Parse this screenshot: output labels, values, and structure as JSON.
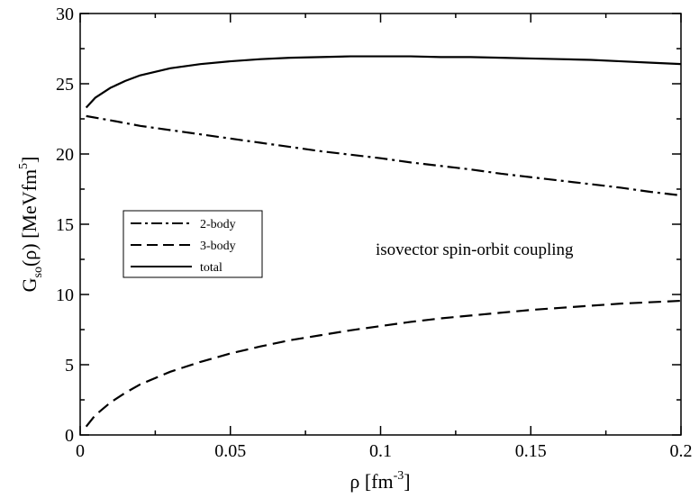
{
  "chart_data": {
    "type": "line",
    "xlabel": "ρ  [fm",
    "xlabel_sup": "-3",
    "xlabel_close": "]",
    "ylabel_main": "G",
    "ylabel_sub": "so",
    "ylabel_mid": "(ρ)  [MeVfm",
    "ylabel_sup": "5",
    "ylabel_close": "]",
    "xlim": [
      0,
      0.2
    ],
    "ylim": [
      0,
      30
    ],
    "xticks": [
      0,
      0.05,
      0.1,
      0.15,
      0.2
    ],
    "xtick_labels": [
      "0",
      "0.05",
      "0.1",
      "0.15",
      "0.2"
    ],
    "yticks": [
      0,
      5,
      10,
      15,
      20,
      25,
      30
    ],
    "ytick_labels": [
      "0",
      "5",
      "10",
      "15",
      "20",
      "25",
      "30"
    ],
    "grid": false,
    "legend_position": "middle-left",
    "annotation": "isovector spin-orbit coupling",
    "series": [
      {
        "name": "2-body",
        "style": "dash-dot",
        "x": [
          0.002,
          0.01,
          0.02,
          0.03,
          0.04,
          0.05,
          0.06,
          0.07,
          0.08,
          0.09,
          0.1,
          0.11,
          0.12,
          0.13,
          0.14,
          0.15,
          0.16,
          0.17,
          0.18,
          0.19,
          0.2
        ],
        "y": [
          22.7,
          22.4,
          22.0,
          21.7,
          21.4,
          21.1,
          20.8,
          20.5,
          20.2,
          19.95,
          19.7,
          19.4,
          19.15,
          18.9,
          18.6,
          18.35,
          18.1,
          17.85,
          17.6,
          17.3,
          17.05
        ]
      },
      {
        "name": "3-body",
        "style": "dashed",
        "x": [
          0.002,
          0.005,
          0.01,
          0.015,
          0.02,
          0.03,
          0.04,
          0.05,
          0.06,
          0.07,
          0.08,
          0.09,
          0.1,
          0.11,
          0.12,
          0.13,
          0.14,
          0.15,
          0.16,
          0.17,
          0.18,
          0.19,
          0.2
        ],
        "y": [
          0.6,
          1.4,
          2.3,
          3.0,
          3.6,
          4.5,
          5.2,
          5.8,
          6.3,
          6.75,
          7.1,
          7.45,
          7.75,
          8.05,
          8.3,
          8.5,
          8.7,
          8.9,
          9.05,
          9.2,
          9.35,
          9.45,
          9.55
        ]
      },
      {
        "name": "total",
        "style": "solid",
        "x": [
          0.002,
          0.005,
          0.01,
          0.015,
          0.02,
          0.03,
          0.04,
          0.05,
          0.06,
          0.07,
          0.08,
          0.09,
          0.1,
          0.11,
          0.12,
          0.13,
          0.14,
          0.15,
          0.16,
          0.17,
          0.18,
          0.19,
          0.2
        ],
        "y": [
          23.3,
          24.0,
          24.7,
          25.2,
          25.6,
          26.1,
          26.4,
          26.6,
          26.75,
          26.85,
          26.9,
          26.95,
          26.95,
          26.95,
          26.9,
          26.9,
          26.85,
          26.8,
          26.75,
          26.7,
          26.6,
          26.5,
          26.4
        ]
      }
    ]
  }
}
